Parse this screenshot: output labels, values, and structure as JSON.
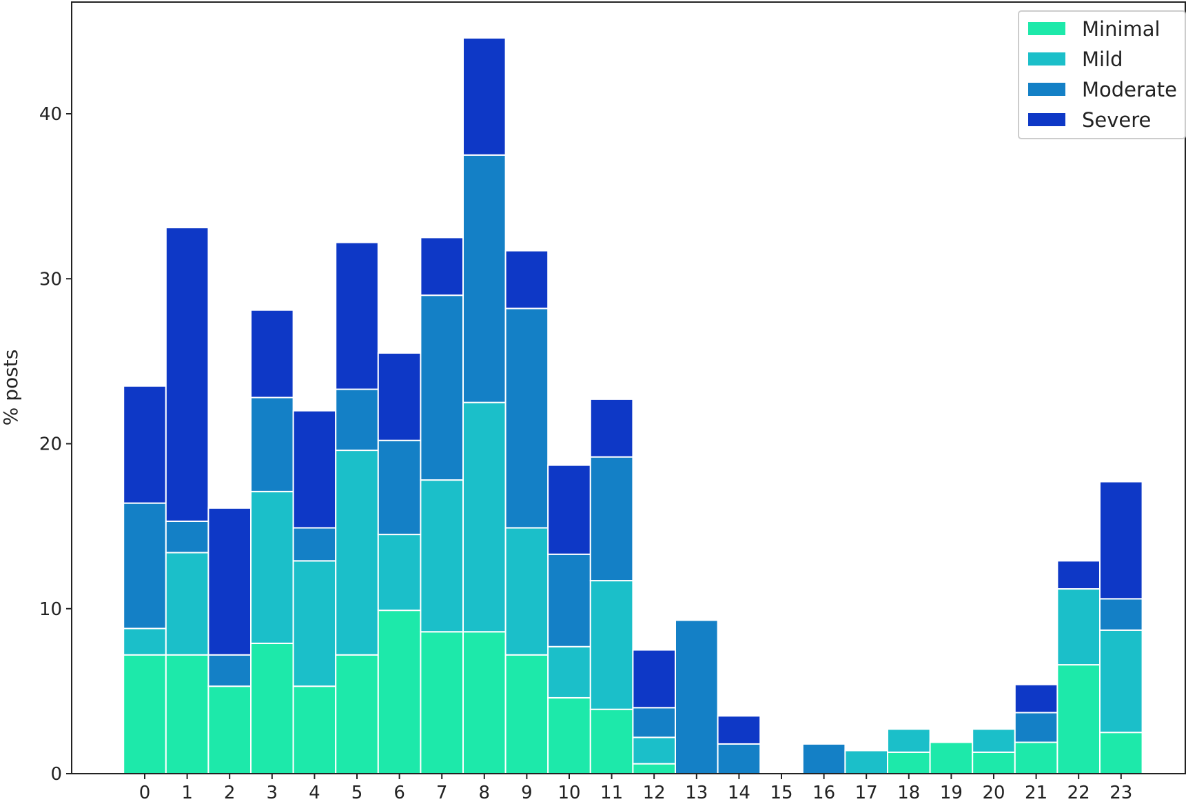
{
  "chart_data": {
    "type": "bar",
    "stacked": true,
    "categories": [
      "0",
      "1",
      "2",
      "3",
      "4",
      "5",
      "6",
      "7",
      "8",
      "9",
      "10",
      "11",
      "12",
      "13",
      "14",
      "15",
      "16",
      "17",
      "18",
      "19",
      "20",
      "21",
      "22",
      "23"
    ],
    "series": [
      {
        "name": "Minimal",
        "color": "#1de9aa",
        "values": [
          7.2,
          7.2,
          5.3,
          7.9,
          5.3,
          7.2,
          9.9,
          8.6,
          8.6,
          7.2,
          4.6,
          3.9,
          0.6,
          0,
          0,
          0,
          0,
          0,
          1.3,
          1.9,
          1.3,
          1.9,
          6.6,
          2.5
        ]
      },
      {
        "name": "Mild",
        "color": "#1bbfc9",
        "values": [
          1.6,
          6.2,
          0,
          9.2,
          7.6,
          12.4,
          4.6,
          9.2,
          13.9,
          7.7,
          3.1,
          7.8,
          1.6,
          0,
          0,
          0,
          0,
          1.4,
          1.4,
          0,
          1.4,
          0,
          4.6,
          6.2
        ]
      },
      {
        "name": "Moderate",
        "color": "#1480c6",
        "values": [
          7.6,
          1.9,
          1.9,
          5.7,
          2.0,
          3.7,
          5.7,
          11.2,
          15.0,
          13.3,
          5.6,
          7.5,
          1.8,
          9.3,
          1.8,
          0,
          1.8,
          0,
          0,
          0,
          0,
          1.8,
          0,
          1.9
        ]
      },
      {
        "name": "Severe",
        "color": "#0e38c6",
        "values": [
          7.1,
          17.8,
          8.9,
          5.3,
          7.1,
          8.9,
          5.3,
          3.5,
          7.1,
          3.5,
          5.4,
          3.5,
          3.5,
          0,
          1.7,
          0,
          0,
          0,
          0,
          0,
          0,
          1.7,
          1.7,
          7.1
        ]
      }
    ],
    "title": "",
    "xlabel": "",
    "ylabel": "% posts",
    "ylim": [
      0,
      47
    ],
    "yticks": [
      0,
      10,
      20,
      30,
      40
    ],
    "grid": false,
    "legend": "top-right"
  }
}
